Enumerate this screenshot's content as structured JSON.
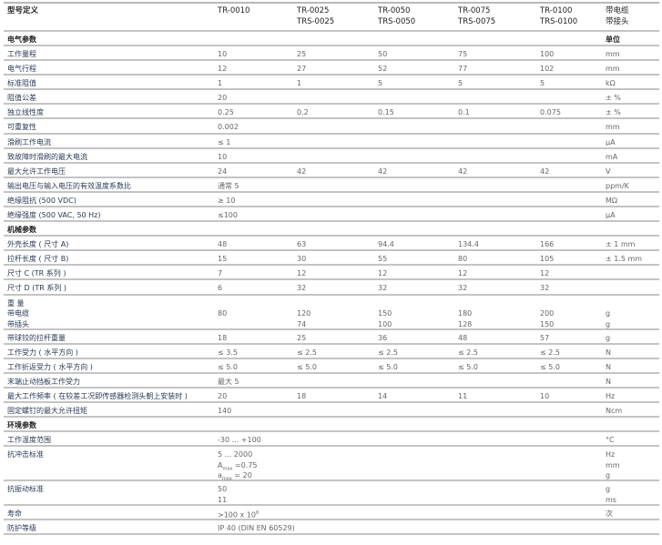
{
  "header": {
    "label": "型号定义",
    "models": [
      [
        "TR-0010"
      ],
      [
        "TR-0025",
        "TRS-0025"
      ],
      [
        "TR-0050",
        "TRS-0050"
      ],
      [
        "TR-0075",
        "TRS-0075"
      ],
      [
        "TR-0100",
        "TRS-0100"
      ]
    ],
    "unit": [
      "带电缆",
      "带接头"
    ]
  },
  "rows": [
    {
      "type": "sec",
      "label": [
        "电气参数"
      ],
      "values": [],
      "unit": [
        "单位"
      ]
    },
    {
      "type": "single",
      "label": [
        "工作量程"
      ],
      "values": [
        [
          "10"
        ],
        [
          "25"
        ],
        [
          "50"
        ],
        [
          "75"
        ],
        [
          "100"
        ]
      ],
      "unit": [
        "mm"
      ]
    },
    {
      "type": "single",
      "label": [
        "电气行程"
      ],
      "values": [
        [
          "12"
        ],
        [
          "27"
        ],
        [
          "52"
        ],
        [
          "77"
        ],
        [
          "102"
        ]
      ],
      "unit": [
        "mm"
      ]
    },
    {
      "type": "single",
      "label": [
        "标准阻值"
      ],
      "values": [
        [
          "1"
        ],
        [
          "1"
        ],
        [
          "5"
        ],
        [
          "5"
        ],
        [
          "5"
        ]
      ],
      "unit": [
        "kΩ"
      ]
    },
    {
      "type": "single",
      "label": [
        "阻值公差"
      ],
      "values": [
        [
          "20"
        ]
      ],
      "unit": [
        "± %"
      ]
    },
    {
      "type": "single",
      "label": [
        "独立线性度"
      ],
      "values": [
        [
          "0.25"
        ],
        [
          "0.2"
        ],
        [
          "0.15"
        ],
        [
          "0.1"
        ],
        [
          "0.075"
        ]
      ],
      "unit": [
        "± %"
      ]
    },
    {
      "type": "single",
      "label": [
        "可重复性"
      ],
      "values": [
        [
          "0.002"
        ]
      ],
      "unit": [
        "mm"
      ]
    },
    {
      "type": "single",
      "label": [
        "滑刷工作电流"
      ],
      "values": [
        [
          "≤ 1"
        ]
      ],
      "unit": [
        "µA"
      ]
    },
    {
      "type": "single",
      "label": [
        "致故障时滑刷的最大电流"
      ],
      "values": [
        [
          "10"
        ]
      ],
      "unit": [
        "mA"
      ]
    },
    {
      "type": "single",
      "label": [
        "最大允许工作电压"
      ],
      "values": [
        [
          "24"
        ],
        [
          "42"
        ],
        [
          "42"
        ],
        [
          "42"
        ],
        [
          "42"
        ]
      ],
      "unit": [
        "V"
      ]
    },
    {
      "type": "single",
      "label": [
        "输出电压与输入电压的有效温度系数比"
      ],
      "values": [
        [
          "通常 5"
        ]
      ],
      "unit": [
        "ppm/K"
      ]
    },
    {
      "type": "single",
      "label": [
        "绝缘阻抗 (500 VDC)"
      ],
      "values": [
        [
          "≥ 10"
        ]
      ],
      "unit": [
        "MΩ"
      ]
    },
    {
      "type": "single",
      "label": [
        "绝缘强度 (500 VAC, 50 Hz)"
      ],
      "values": [
        [
          "≤100"
        ]
      ],
      "unit": [
        "µA"
      ]
    },
    {
      "type": "sec",
      "label": [
        "机械参数"
      ],
      "values": [],
      "unit": []
    },
    {
      "type": "single",
      "label": [
        "外壳长度 ( 尺寸 A)"
      ],
      "values": [
        [
          "48"
        ],
        [
          "63"
        ],
        [
          "94.4"
        ],
        [
          "134.4"
        ],
        [
          "166"
        ]
      ],
      "unit": [
        "± 1 mm"
      ]
    },
    {
      "type": "single",
      "label": [
        "拉杆长度 ( 尺寸 B)"
      ],
      "values": [
        [
          "15"
        ],
        [
          "30"
        ],
        [
          "55"
        ],
        [
          "80"
        ],
        [
          "105"
        ]
      ],
      "unit": [
        "± 1.5 mm"
      ]
    },
    {
      "type": "single",
      "label": [
        "尺寸 C (TR 系列 )"
      ],
      "values": [
        [
          "7"
        ],
        [
          "12"
        ],
        [
          "12"
        ],
        [
          "12"
        ],
        [
          "12"
        ]
      ],
      "unit": []
    },
    {
      "type": "single",
      "label": [
        "尺寸 D (TR 系列 )"
      ],
      "values": [
        [
          "6"
        ],
        [
          "32"
        ],
        [
          "32"
        ],
        [
          "32"
        ],
        [
          "32"
        ]
      ],
      "unit": []
    },
    {
      "type": "l3",
      "label": [
        "重  量",
        "带电缆",
        "带插头"
      ],
      "values": [
        [
          "",
          "80",
          ""
        ],
        [
          "",
          "120",
          "74"
        ],
        [
          "",
          "150",
          "100"
        ],
        [
          "",
          "180",
          "128"
        ],
        [
          "",
          "200",
          "150"
        ]
      ],
      "unit": [
        "",
        "g",
        "g"
      ]
    },
    {
      "type": "single",
      "label": [
        "带球铰的拉杆重量"
      ],
      "values": [
        [
          "18"
        ],
        [
          "25"
        ],
        [
          "36"
        ],
        [
          "48"
        ],
        [
          "57"
        ]
      ],
      "unit": [
        "g"
      ]
    },
    {
      "type": "single",
      "label": [
        "工作受力 ( 水平方向 )"
      ],
      "values": [
        [
          "≤ 3.5"
        ],
        [
          "≤ 2.5"
        ],
        [
          "≤ 2.5"
        ],
        [
          "≤ 2.5"
        ],
        [
          "≤ 2.5"
        ]
      ],
      "unit": [
        "N"
      ]
    },
    {
      "type": "single",
      "label": [
        "工作折返受力 ( 水平方向 )"
      ],
      "values": [
        [
          "≤ 5.0"
        ],
        [
          "≤ 5.0"
        ],
        [
          "≤ 5.0"
        ],
        [
          "≤ 5.0"
        ],
        [
          "≤ 5.0"
        ]
      ],
      "unit": [
        "N"
      ]
    },
    {
      "type": "single",
      "label": [
        "末端止动挡板工作受力"
      ],
      "values": [
        [
          "最大 5"
        ]
      ],
      "unit": [
        "N"
      ]
    },
    {
      "type": "single",
      "label": [
        "最大工作频率 ( 在较差工况即传感器检测头朝上安装时 )"
      ],
      "values": [
        [
          "20"
        ],
        [
          "18"
        ],
        [
          "14"
        ],
        [
          "11"
        ],
        [
          "10"
        ]
      ],
      "unit": [
        "Hz"
      ]
    },
    {
      "type": "single",
      "label": [
        "固定螺钉的最大允许扭矩"
      ],
      "values": [
        [
          "140"
        ]
      ],
      "unit": [
        "Ncm"
      ]
    },
    {
      "type": "sec",
      "label": [
        "环境参数"
      ],
      "values": [],
      "unit": []
    },
    {
      "type": "single",
      "label": [
        "工作温度范围"
      ],
      "values": [
        [
          "-30 ... +100"
        ]
      ],
      "unit": [
        "°C"
      ]
    },
    {
      "type": "l3",
      "label": [
        "抗冲击标准"
      ],
      "values": [
        [
          "5 ... 2000",
          {
            "base": "A",
            "sub": "max",
            "rest": " =0.75"
          },
          {
            "base": "a",
            "sub": "max",
            "rest": " = 20"
          }
        ]
      ],
      "unit": [
        "Hz",
        "mm",
        "g"
      ]
    },
    {
      "type": "l2",
      "label": [
        "抗振动标准"
      ],
      "values": [
        [
          "50",
          "11"
        ]
      ],
      "unit": [
        "g",
        "ms"
      ]
    },
    {
      "type": "single",
      "label": [
        "寿命"
      ],
      "values": [
        [
          {
            "base": ">100 x 10",
            "sup": "6",
            "rest": ""
          }
        ]
      ],
      "unit": [
        "次"
      ]
    },
    {
      "type": "single",
      "label": [
        "防护等级"
      ],
      "values": [
        [
          "IP 40 (DIN EN 60529)"
        ]
      ],
      "unit": []
    }
  ]
}
